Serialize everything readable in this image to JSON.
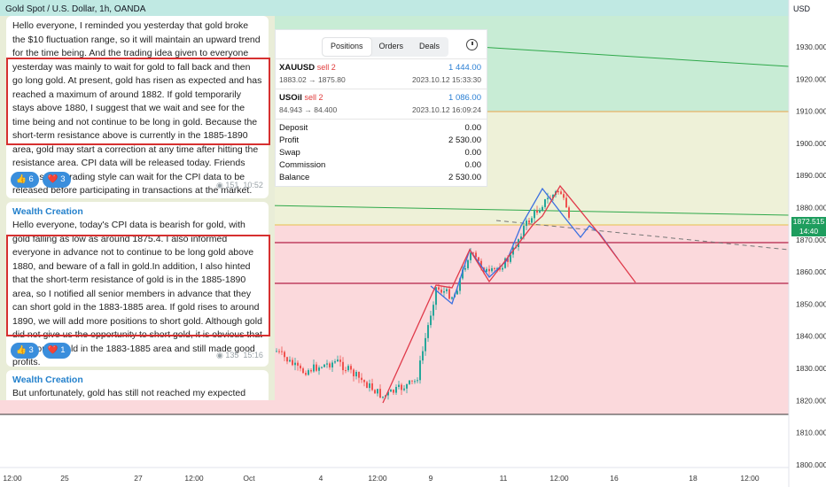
{
  "header": {
    "title": "Gold Spot / U.S. Dollar, 1h, OANDA",
    "currency": "USD"
  },
  "price_axis": {
    "ticks": [
      "1930.000",
      "1920.000",
      "1910.000",
      "1900.000",
      "1890.000",
      "1880.000",
      "1870.000",
      "1860.000",
      "1850.000",
      "1840.000",
      "1830.000",
      "1820.000",
      "1810.000",
      "1800.000"
    ]
  },
  "time_axis": {
    "ticks": [
      "12:00",
      "25",
      "27",
      "12:00",
      "Oct",
      "4",
      "12:00",
      "9",
      "11",
      "12:00",
      "16",
      "18",
      "12:00"
    ]
  },
  "current_price": {
    "price": "1872.515",
    "time": "14:40"
  },
  "chat": {
    "msg1": {
      "pre": "Hello everyone, I reminded you yesterday that gold broke the $10 fluctuation range, so it will maintain an upward trend for the time being. And the trading idea given to everyone yesterday was mainly",
      "highlight": "to wait for gold to fall back and then go long gold. At present, gold has risen as expected and has reached a maximum of around 1882. If gold temporarily stays above 1880, I suggest that we wait and see for the time being and not continue to be long in gold. Because the short-term resistance above is currently in the 1885-1890 area, gold may start a correction at any time after hitting the resistance area.",
      "post": "CPI data will be released today. Friends with a stable trading style can wait for the CPI data to be released before participating in transactions at the market.",
      "likes": "👍 6",
      "hearts": "❤️ 3",
      "views": "151",
      "time": "10:52"
    },
    "msg2": {
      "sender": "Wealth Creation",
      "pre": "Hello everyone, today's CPI data is bearish for gold, with gold falling as low as around 1875.4. I also informed everyone in advance not to",
      "highlight": "continue to be long gold above 1880, and beware of a fall in gold.In addition, I also hinted that the short-term resistance of gold is in the 1885-1890 area, so I notified all senior members in advance that they can short gold in the 1883-1885 area. If gold rises to around 1890, we will add more positions to short gold. Although gold did not give us the opportunity to short gold, it is obvious that we shorted gold in the 1883-1885 area and still made good profits.",
      "likes": "👍 3",
      "hearts": "❤️ 1",
      "views": "135",
      "time": "15:16"
    },
    "msg3": {
      "sender": "Wealth Creation",
      "text": "But unfortunately, gold has still not reached my expected profit"
    }
  },
  "positions_panel": {
    "tabs": [
      "Positions",
      "Orders",
      "Deals"
    ],
    "trades": [
      {
        "symbol": "XAUUSD",
        "action": "sell 2",
        "profit": "1 444.00",
        "prices": "1883.02 → 1875.80",
        "time": "2023.10.12 15:33:30"
      },
      {
        "symbol": "USOil",
        "action": "sell 2",
        "profit": "1 086.00",
        "prices": "84.943 → 84.400",
        "time": "2023.10.12 16:09:24"
      }
    ],
    "summary": [
      {
        "label": "Deposit",
        "value": "0.00"
      },
      {
        "label": "Profit",
        "value": "2 530.00"
      },
      {
        "label": "Swap",
        "value": "0.00"
      },
      {
        "label": "Commission",
        "value": "0.00"
      },
      {
        "label": "Balance",
        "value": "2 530.00"
      }
    ]
  },
  "colors": {
    "up": "#26a69a",
    "down": "#ef5350",
    "accent": "#2481cc",
    "highlight_box": "#d63030"
  }
}
